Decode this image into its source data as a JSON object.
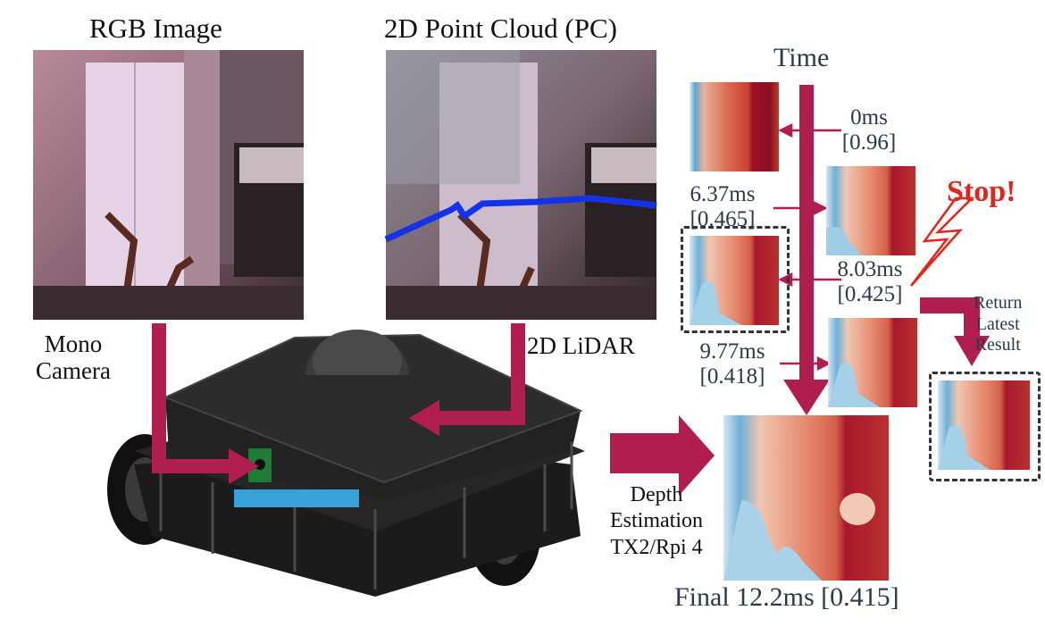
{
  "labels": {
    "rgb_title": "RGB Image",
    "pc_title": "2D Point Cloud (PC)",
    "time": "Time",
    "mono_camera_line1": "Mono",
    "mono_camera_line2": "Camera",
    "lidar": "2D LiDAR",
    "depth_line1": "Depth",
    "depth_line2": "Estimation",
    "depth_line3": "TX2/Rpi 4",
    "stop": "Stop!",
    "return_line1": "Return",
    "return_line2": "Latest",
    "return_line3": "Result",
    "final": "Final 12.2ms [0.415]"
  },
  "steps": [
    {
      "time": "0ms",
      "score": "[0.96]"
    },
    {
      "time": "6.37ms",
      "score": "[0.465]"
    },
    {
      "time": "8.03ms",
      "score": "[0.425]"
    },
    {
      "time": "9.77ms",
      "score": "[0.418]"
    }
  ],
  "colors": {
    "arrow": "#b01e4e",
    "stop": "#e8231a",
    "depth_near": "#4f97c9",
    "depth_far": "#a0132a",
    "lidar_line": "#1533e6"
  }
}
